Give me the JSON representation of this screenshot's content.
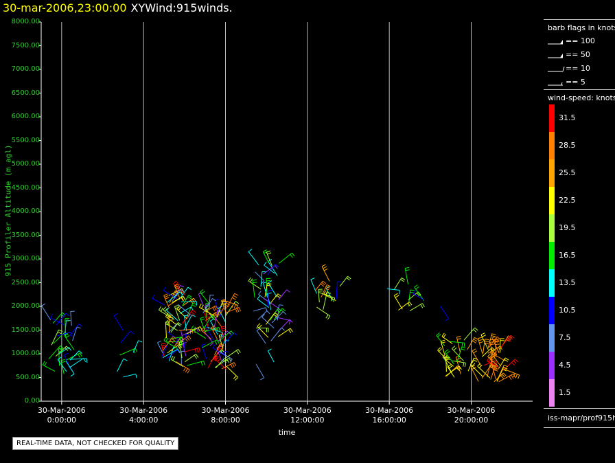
{
  "header": {
    "datetime": "30-mar-2006,23:00:00",
    "name": "XYWind:915winds."
  },
  "chart_data": {
    "type": "scatter",
    "subtype": "wind-barbs",
    "ylabel": "915 Profiler Altitude (m agl)",
    "xlabel": "time",
    "ylim": [
      0,
      8000
    ],
    "yticks": [
      "0.00",
      "500.00",
      "1000.00",
      "1500.00",
      "2000.00",
      "2500.00",
      "3000.00",
      "3500.00",
      "4000.00",
      "4500.00",
      "5000.00",
      "5500.00",
      "6000.00",
      "6500.00",
      "7000.00",
      "7500.00",
      "8000.00"
    ],
    "xlim_hours": [
      -1,
      23
    ],
    "xticks": [
      {
        "hour": 0,
        "date": "30-Mar-2006",
        "time": "0:00:00"
      },
      {
        "hour": 4,
        "date": "30-Mar-2006",
        "time": "4:00:00"
      },
      {
        "hour": 8,
        "date": "30-Mar-2006",
        "time": "8:00:00"
      },
      {
        "hour": 12,
        "date": "30-Mar-2006",
        "time": "12:00:00"
      },
      {
        "hour": 16,
        "date": "30-Mar-2006",
        "time": "16:00:00"
      },
      {
        "hour": 20,
        "date": "30-Mar-2006",
        "time": "20:00:00"
      }
    ],
    "grid": "vertical",
    "clusters": [
      {
        "hour": 0.0,
        "alt_min": 450,
        "alt_max": 1800,
        "speed_min": 7.5,
        "speed_max": 19.5,
        "count": 26
      },
      {
        "hour": 3.2,
        "alt_min": 500,
        "alt_max": 1500,
        "speed_min": 7.5,
        "speed_max": 16.5,
        "count": 6
      },
      {
        "hour": 5.5,
        "alt_min": 700,
        "alt_max": 2300,
        "speed_min": 4.5,
        "speed_max": 31.5,
        "count": 60
      },
      {
        "hour": 7.5,
        "alt_min": 650,
        "alt_max": 2200,
        "speed_min": 4.5,
        "speed_max": 31.5,
        "count": 55
      },
      {
        "hour": 10.0,
        "alt_min": 700,
        "alt_max": 3000,
        "speed_min": 4.5,
        "speed_max": 22.5,
        "count": 40
      },
      {
        "hour": 13.0,
        "alt_min": 1900,
        "alt_max": 2600,
        "speed_min": 10.5,
        "speed_max": 28.5,
        "count": 12
      },
      {
        "hour": 16.5,
        "alt_min": 1900,
        "alt_max": 2500,
        "speed_min": 13.5,
        "speed_max": 22.5,
        "count": 8
      },
      {
        "hour": 18.3,
        "alt_min": 1900,
        "alt_max": 2200,
        "speed_min": 10.5,
        "speed_max": 19.5,
        "count": 3
      },
      {
        "hour": 19.2,
        "alt_min": 500,
        "alt_max": 1300,
        "speed_min": 16.5,
        "speed_max": 25.5,
        "count": 20
      },
      {
        "hour": 21.0,
        "alt_min": 400,
        "alt_max": 1200,
        "speed_min": 22.5,
        "speed_max": 31.5,
        "count": 35
      }
    ]
  },
  "legend": {
    "flags_title": "barb flags in knots",
    "flags": [
      {
        "label": "== 100",
        "kind": "pennant"
      },
      {
        "label": "== 50",
        "kind": "pennant"
      },
      {
        "label": "== 10",
        "kind": "full"
      },
      {
        "label": "== 5",
        "kind": "half"
      }
    ],
    "speed_title": "wind-speed: knots",
    "colorbar": [
      {
        "value": "31.5",
        "color": "#ff0000"
      },
      {
        "value": "28.5",
        "color": "#ff8000"
      },
      {
        "value": "25.5",
        "color": "#ffa500"
      },
      {
        "value": "22.5",
        "color": "#ffff00"
      },
      {
        "value": "19.5",
        "color": "#a8ff3c"
      },
      {
        "value": "16.5",
        "color": "#00ee00"
      },
      {
        "value": "13.5",
        "color": "#00ffff"
      },
      {
        "value": "10.5",
        "color": "#0000ff"
      },
      {
        "value": "7.5",
        "color": "#6495ed"
      },
      {
        "value": "4.5",
        "color": "#9b30ff"
      },
      {
        "value": "1.5",
        "color": "#ee82ee"
      }
    ],
    "footer": "iss-mapr/prof915h"
  },
  "notice": "REAL-TIME DATA, NOT CHECKED FOR QUALITY"
}
